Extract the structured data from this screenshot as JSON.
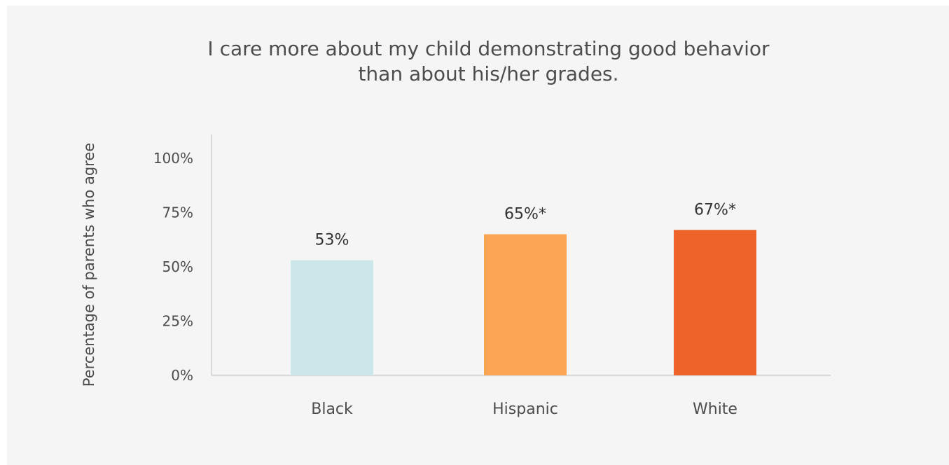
{
  "chart_data": {
    "type": "bar",
    "title": "I care more about my child demonstrating good behavior\nthan about his/her grades.",
    "ylabel": "Percentage of parents who agree",
    "xlabel": "",
    "ylim": [
      0,
      100
    ],
    "yticks": [
      "0%",
      "25%",
      "50%",
      "75%",
      "100%"
    ],
    "ytick_values": [
      0,
      25,
      50,
      75,
      100
    ],
    "categories": [
      "Black",
      "Hispanic",
      "White"
    ],
    "values": [
      53,
      65,
      67
    ],
    "value_labels": [
      "53%",
      "65%*",
      "67%*"
    ],
    "colors": [
      "#cbe7ea",
      "#f9a551",
      "#ee6428"
    ],
    "grid": false,
    "legend": "none"
  }
}
